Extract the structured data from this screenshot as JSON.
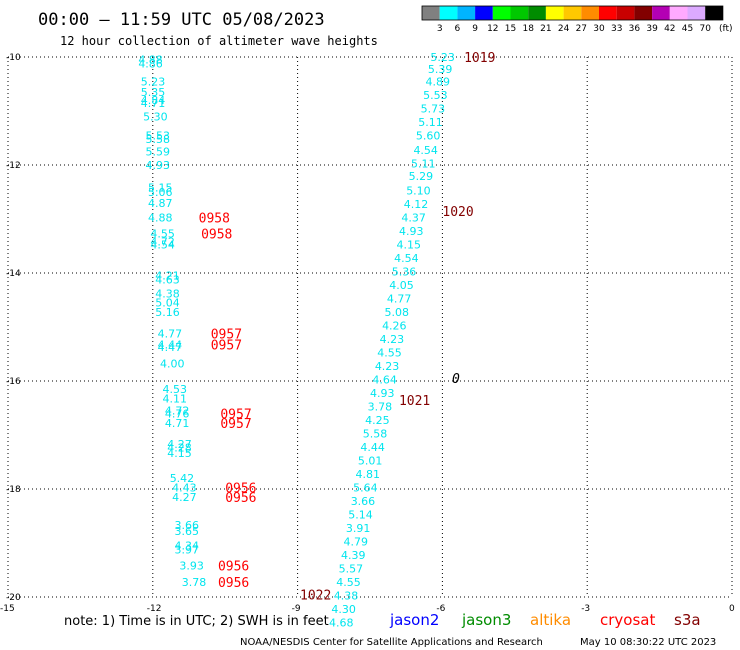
{
  "header": {
    "title": "00:00 – 11:59 UTC 05/08/2023",
    "subtitle": "12 hour collection of altimeter wave heights"
  },
  "colorbar": {
    "labels": [
      "3",
      "6",
      "9",
      "12",
      "15",
      "18",
      "21",
      "24",
      "27",
      "30",
      "33",
      "36",
      "39",
      "42",
      "45",
      "70"
    ],
    "unit": "(ft)",
    "colors": [
      "#808080",
      "#00ffff",
      "#00b4ff",
      "#0000ff",
      "#00ff00",
      "#00c800",
      "#008c00",
      "#ffff00",
      "#ffc800",
      "#ff8c00",
      "#ff0000",
      "#c80000",
      "#820000",
      "#b400b4",
      "#ffaaff",
      "#dcaaff",
      "#000000"
    ]
  },
  "note": "note:  1) Time is in UTC; 2) SWH is in feet",
  "satellites": [
    {
      "name": "jason2",
      "color": "#0000ff"
    },
    {
      "name": "jason3",
      "color": "#008c00"
    },
    {
      "name": "altika",
      "color": "#ff8c00"
    },
    {
      "name": "cryosat",
      "color": "#ff0000"
    },
    {
      "name": "s3a",
      "color": "#820000"
    }
  ],
  "footer": {
    "credit": "NOAA/NESDIS Center for Satellite Applications and Research",
    "timestamp": "May 10 08:30:22 UTC 2023"
  },
  "marker": "0",
  "chart_data": {
    "type": "scatter",
    "xlim": [
      -15,
      0
    ],
    "ylim": [
      -20,
      -10
    ],
    "x_ticks": [
      "-15",
      "-12",
      "-9",
      "-6",
      "-3",
      "0"
    ],
    "y_ticks": [
      "-10",
      "-12",
      "-14",
      "-16",
      "-18",
      "-20"
    ],
    "grid": true,
    "swh_points": [
      {
        "x": -12.3,
        "y": -10.05,
        "v": "4.88"
      },
      {
        "x": -12.3,
        "y": -10.12,
        "v": "4.86"
      },
      {
        "x": -12.25,
        "y": -10.45,
        "v": "5.23"
      },
      {
        "x": -12.25,
        "y": -10.65,
        "v": "5.35"
      },
      {
        "x": -12.25,
        "y": -10.8,
        "v": "4.84"
      },
      {
        "x": -12.25,
        "y": -10.85,
        "v": "4.71"
      },
      {
        "x": -12.2,
        "y": -11.1,
        "v": "5.30"
      },
      {
        "x": -12.15,
        "y": -11.45,
        "v": "5.53"
      },
      {
        "x": -12.15,
        "y": -11.52,
        "v": "5.58"
      },
      {
        "x": -12.15,
        "y": -11.75,
        "v": "5.59"
      },
      {
        "x": -12.15,
        "y": -12.0,
        "v": "4.93"
      },
      {
        "x": -12.1,
        "y": -12.42,
        "v": "5.15"
      },
      {
        "x": -12.1,
        "y": -12.5,
        "v": "5.06"
      },
      {
        "x": -12.1,
        "y": -12.7,
        "v": "4.87"
      },
      {
        "x": -12.1,
        "y": -12.97,
        "v": "4.88"
      },
      {
        "x": -12.05,
        "y": -13.27,
        "v": "4.55"
      },
      {
        "x": -12.05,
        "y": -13.42,
        "v": "4.72"
      },
      {
        "x": -12.05,
        "y": -13.47,
        "v": "4.54"
      },
      {
        "x": -11.95,
        "y": -14.05,
        "v": "4.21"
      },
      {
        "x": -11.95,
        "y": -14.12,
        "v": "4.63"
      },
      {
        "x": -11.95,
        "y": -14.38,
        "v": "4.38"
      },
      {
        "x": -11.95,
        "y": -14.55,
        "v": "5.04"
      },
      {
        "x": -11.95,
        "y": -14.72,
        "v": "5.16"
      },
      {
        "x": -11.9,
        "y": -15.12,
        "v": "4.77"
      },
      {
        "x": -11.9,
        "y": -15.32,
        "v": "4.44"
      },
      {
        "x": -11.9,
        "y": -15.37,
        "v": "4.47"
      },
      {
        "x": -11.85,
        "y": -15.68,
        "v": "4.00"
      },
      {
        "x": -11.8,
        "y": -16.15,
        "v": "4.53"
      },
      {
        "x": -11.8,
        "y": -16.32,
        "v": "4.11"
      },
      {
        "x": -11.75,
        "y": -16.55,
        "v": "4.72"
      },
      {
        "x": -11.75,
        "y": -16.6,
        "v": "4.76"
      },
      {
        "x": -11.75,
        "y": -16.78,
        "v": "4.71"
      },
      {
        "x": -11.7,
        "y": -17.17,
        "v": "4.27"
      },
      {
        "x": -11.7,
        "y": -17.23,
        "v": "4.28"
      },
      {
        "x": -11.7,
        "y": -17.33,
        "v": "4.15"
      },
      {
        "x": -11.65,
        "y": -17.8,
        "v": "5.42"
      },
      {
        "x": -11.6,
        "y": -17.97,
        "v": "4.43"
      },
      {
        "x": -11.6,
        "y": -18.15,
        "v": "4.27"
      },
      {
        "x": -11.55,
        "y": -18.67,
        "v": "3.66"
      },
      {
        "x": -11.55,
        "y": -18.78,
        "v": "3.65"
      },
      {
        "x": -11.55,
        "y": -19.05,
        "v": "4.34"
      },
      {
        "x": -11.55,
        "y": -19.12,
        "v": "3.97"
      },
      {
        "x": -11.45,
        "y": -19.42,
        "v": "3.93"
      },
      {
        "x": -11.4,
        "y": -19.72,
        "v": "3.78"
      },
      {
        "x": -6.25,
        "y": -10.0,
        "v": "5.23"
      },
      {
        "x": -6.3,
        "y": -10.22,
        "v": "5.39"
      },
      {
        "x": -6.35,
        "y": -10.45,
        "v": "4.89"
      },
      {
        "x": -6.4,
        "y": -10.7,
        "v": "5.53"
      },
      {
        "x": -6.45,
        "y": -10.95,
        "v": "5.73"
      },
      {
        "x": -6.5,
        "y": -11.2,
        "v": "5.11"
      },
      {
        "x": -6.55,
        "y": -11.45,
        "v": "5.60"
      },
      {
        "x": -6.6,
        "y": -11.72,
        "v": "4.54"
      },
      {
        "x": -6.65,
        "y": -11.97,
        "v": "5.11"
      },
      {
        "x": -6.7,
        "y": -12.2,
        "v": "5.29"
      },
      {
        "x": -6.75,
        "y": -12.47,
        "v": "5.10"
      },
      {
        "x": -6.8,
        "y": -12.72,
        "v": "4.12"
      },
      {
        "x": -6.85,
        "y": -12.97,
        "v": "4.37"
      },
      {
        "x": -6.9,
        "y": -13.22,
        "v": "4.93"
      },
      {
        "x": -6.95,
        "y": -13.47,
        "v": "4.15"
      },
      {
        "x": -7.0,
        "y": -13.72,
        "v": "4.54"
      },
      {
        "x": -7.05,
        "y": -13.97,
        "v": "5.36"
      },
      {
        "x": -7.1,
        "y": -14.22,
        "v": "4.05"
      },
      {
        "x": -7.15,
        "y": -14.47,
        "v": "4.77"
      },
      {
        "x": -7.2,
        "y": -14.72,
        "v": "5.08"
      },
      {
        "x": -7.25,
        "y": -14.97,
        "v": "4.26"
      },
      {
        "x": -7.3,
        "y": -15.22,
        "v": "4.23"
      },
      {
        "x": -7.35,
        "y": -15.47,
        "v": "4.55"
      },
      {
        "x": -7.4,
        "y": -15.72,
        "v": "4.23"
      },
      {
        "x": -7.45,
        "y": -15.97,
        "v": "4.64"
      },
      {
        "x": -7.5,
        "y": -16.22,
        "v": "4.93"
      },
      {
        "x": -7.55,
        "y": -16.47,
        "v": "3.78"
      },
      {
        "x": -7.6,
        "y": -16.72,
        "v": "4.25"
      },
      {
        "x": -7.65,
        "y": -16.97,
        "v": "5.58"
      },
      {
        "x": -7.7,
        "y": -17.22,
        "v": "4.44"
      },
      {
        "x": -7.75,
        "y": -17.47,
        "v": "5.01"
      },
      {
        "x": -7.8,
        "y": -17.72,
        "v": "4.81"
      },
      {
        "x": -7.85,
        "y": -17.97,
        "v": "5.64"
      },
      {
        "x": -7.9,
        "y": -18.22,
        "v": "3.66"
      },
      {
        "x": -7.95,
        "y": -18.47,
        "v": "5.14"
      },
      {
        "x": -8.0,
        "y": -18.72,
        "v": "3.91"
      },
      {
        "x": -8.05,
        "y": -18.97,
        "v": "4.79"
      },
      {
        "x": -8.1,
        "y": -19.22,
        "v": "4.39"
      },
      {
        "x": -8.15,
        "y": -19.47,
        "v": "5.57"
      },
      {
        "x": -8.2,
        "y": -19.72,
        "v": "4.55"
      },
      {
        "x": -8.25,
        "y": -19.97,
        "v": "4.38"
      },
      {
        "x": -8.3,
        "y": -20.22,
        "v": "4.30"
      },
      {
        "x": -8.35,
        "y": -20.47,
        "v": "4.68"
      }
    ],
    "time_labels": [
      {
        "x": -11.05,
        "y": -12.97,
        "t": "0958",
        "color": "#ff0000"
      },
      {
        "x": -11.0,
        "y": -13.27,
        "t": "0958",
        "color": "#ff0000"
      },
      {
        "x": -10.8,
        "y": -15.12,
        "t": "0957",
        "color": "#ff0000"
      },
      {
        "x": -10.8,
        "y": -15.32,
        "t": "0957",
        "color": "#ff0000"
      },
      {
        "x": -10.6,
        "y": -16.6,
        "t": "0957",
        "color": "#ff0000"
      },
      {
        "x": -10.6,
        "y": -16.78,
        "t": "0957",
        "color": "#ff0000"
      },
      {
        "x": -10.5,
        "y": -17.97,
        "t": "0956",
        "color": "#ff0000"
      },
      {
        "x": -10.5,
        "y": -18.15,
        "t": "0956",
        "color": "#ff0000"
      },
      {
        "x": -10.65,
        "y": -19.42,
        "t": "0956",
        "color": "#ff0000"
      },
      {
        "x": -10.65,
        "y": -19.72,
        "t": "0956",
        "color": "#ff0000"
      },
      {
        "x": -5.55,
        "y": -10.0,
        "t": "1019",
        "color": "#820000"
      },
      {
        "x": -6.0,
        "y": -12.85,
        "t": "1020",
        "color": "#820000"
      },
      {
        "x": -6.9,
        "y": -16.35,
        "t": "1021",
        "color": "#820000"
      },
      {
        "x": -8.95,
        "y": -19.95,
        "t": "1022",
        "color": "#820000"
      }
    ]
  }
}
